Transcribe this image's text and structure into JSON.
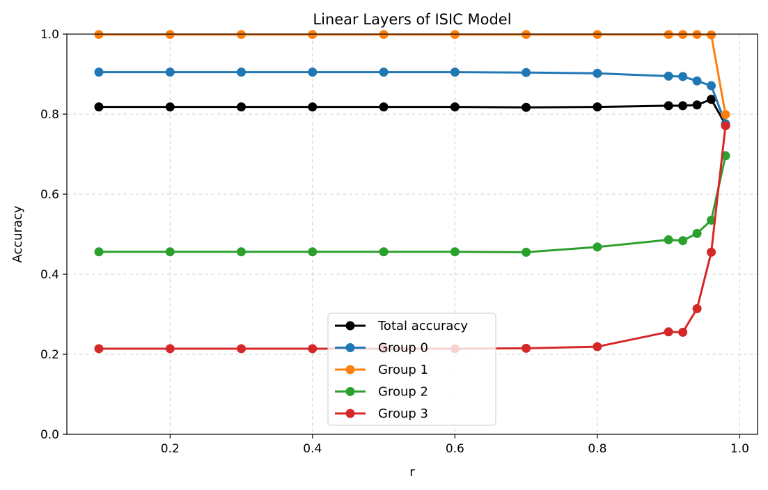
{
  "chart_data": {
    "type": "line",
    "title": "Linear Layers of ISIC Model",
    "xlabel": "r",
    "ylabel": "Accuracy",
    "xlim": [
      0.055,
      1.025
    ],
    "ylim": [
      0.0,
      1.0
    ],
    "xticks": [
      0.2,
      0.4,
      0.6,
      0.8,
      1.0
    ],
    "xtick_labels": [
      "0.2",
      "0.4",
      "0.6",
      "0.8",
      "1.0"
    ],
    "yticks": [
      0.0,
      0.2,
      0.4,
      0.6,
      0.8,
      1.0
    ],
    "ytick_labels": [
      "0.0",
      "0.2",
      "0.4",
      "0.6",
      "0.8",
      "1.0"
    ],
    "grid": true,
    "legend_position": "bottom-center",
    "x": [
      0.1,
      0.2,
      0.3,
      0.4,
      0.5,
      0.6,
      0.7,
      0.8,
      0.9,
      0.92,
      0.94,
      0.96,
      0.98
    ],
    "series": [
      {
        "name": "Total accuracy",
        "color": "#000000",
        "values": [
          0.818,
          0.818,
          0.818,
          0.818,
          0.818,
          0.818,
          0.817,
          0.818,
          0.821,
          0.821,
          0.823,
          0.837,
          0.774
        ]
      },
      {
        "name": "Group 0",
        "color": "#1f77b4",
        "values": [
          0.905,
          0.905,
          0.905,
          0.905,
          0.905,
          0.905,
          0.904,
          0.902,
          0.895,
          0.894,
          0.883,
          0.871,
          0.776
        ]
      },
      {
        "name": "Group 1",
        "color": "#ff7f0e",
        "values": [
          0.999,
          0.999,
          0.999,
          0.999,
          0.999,
          0.999,
          0.999,
          0.999,
          0.999,
          0.999,
          0.999,
          0.998,
          0.799
        ]
      },
      {
        "name": "Group 2",
        "color": "#2ca02c",
        "values": [
          0.456,
          0.456,
          0.456,
          0.456,
          0.456,
          0.456,
          0.455,
          0.468,
          0.486,
          0.484,
          0.502,
          0.535,
          0.696
        ]
      },
      {
        "name": "Group 3",
        "color": "#d62728",
        "values": [
          0.214,
          0.214,
          0.214,
          0.214,
          0.214,
          0.214,
          0.215,
          0.219,
          0.256,
          0.255,
          0.314,
          0.455,
          0.771
        ]
      }
    ]
  }
}
